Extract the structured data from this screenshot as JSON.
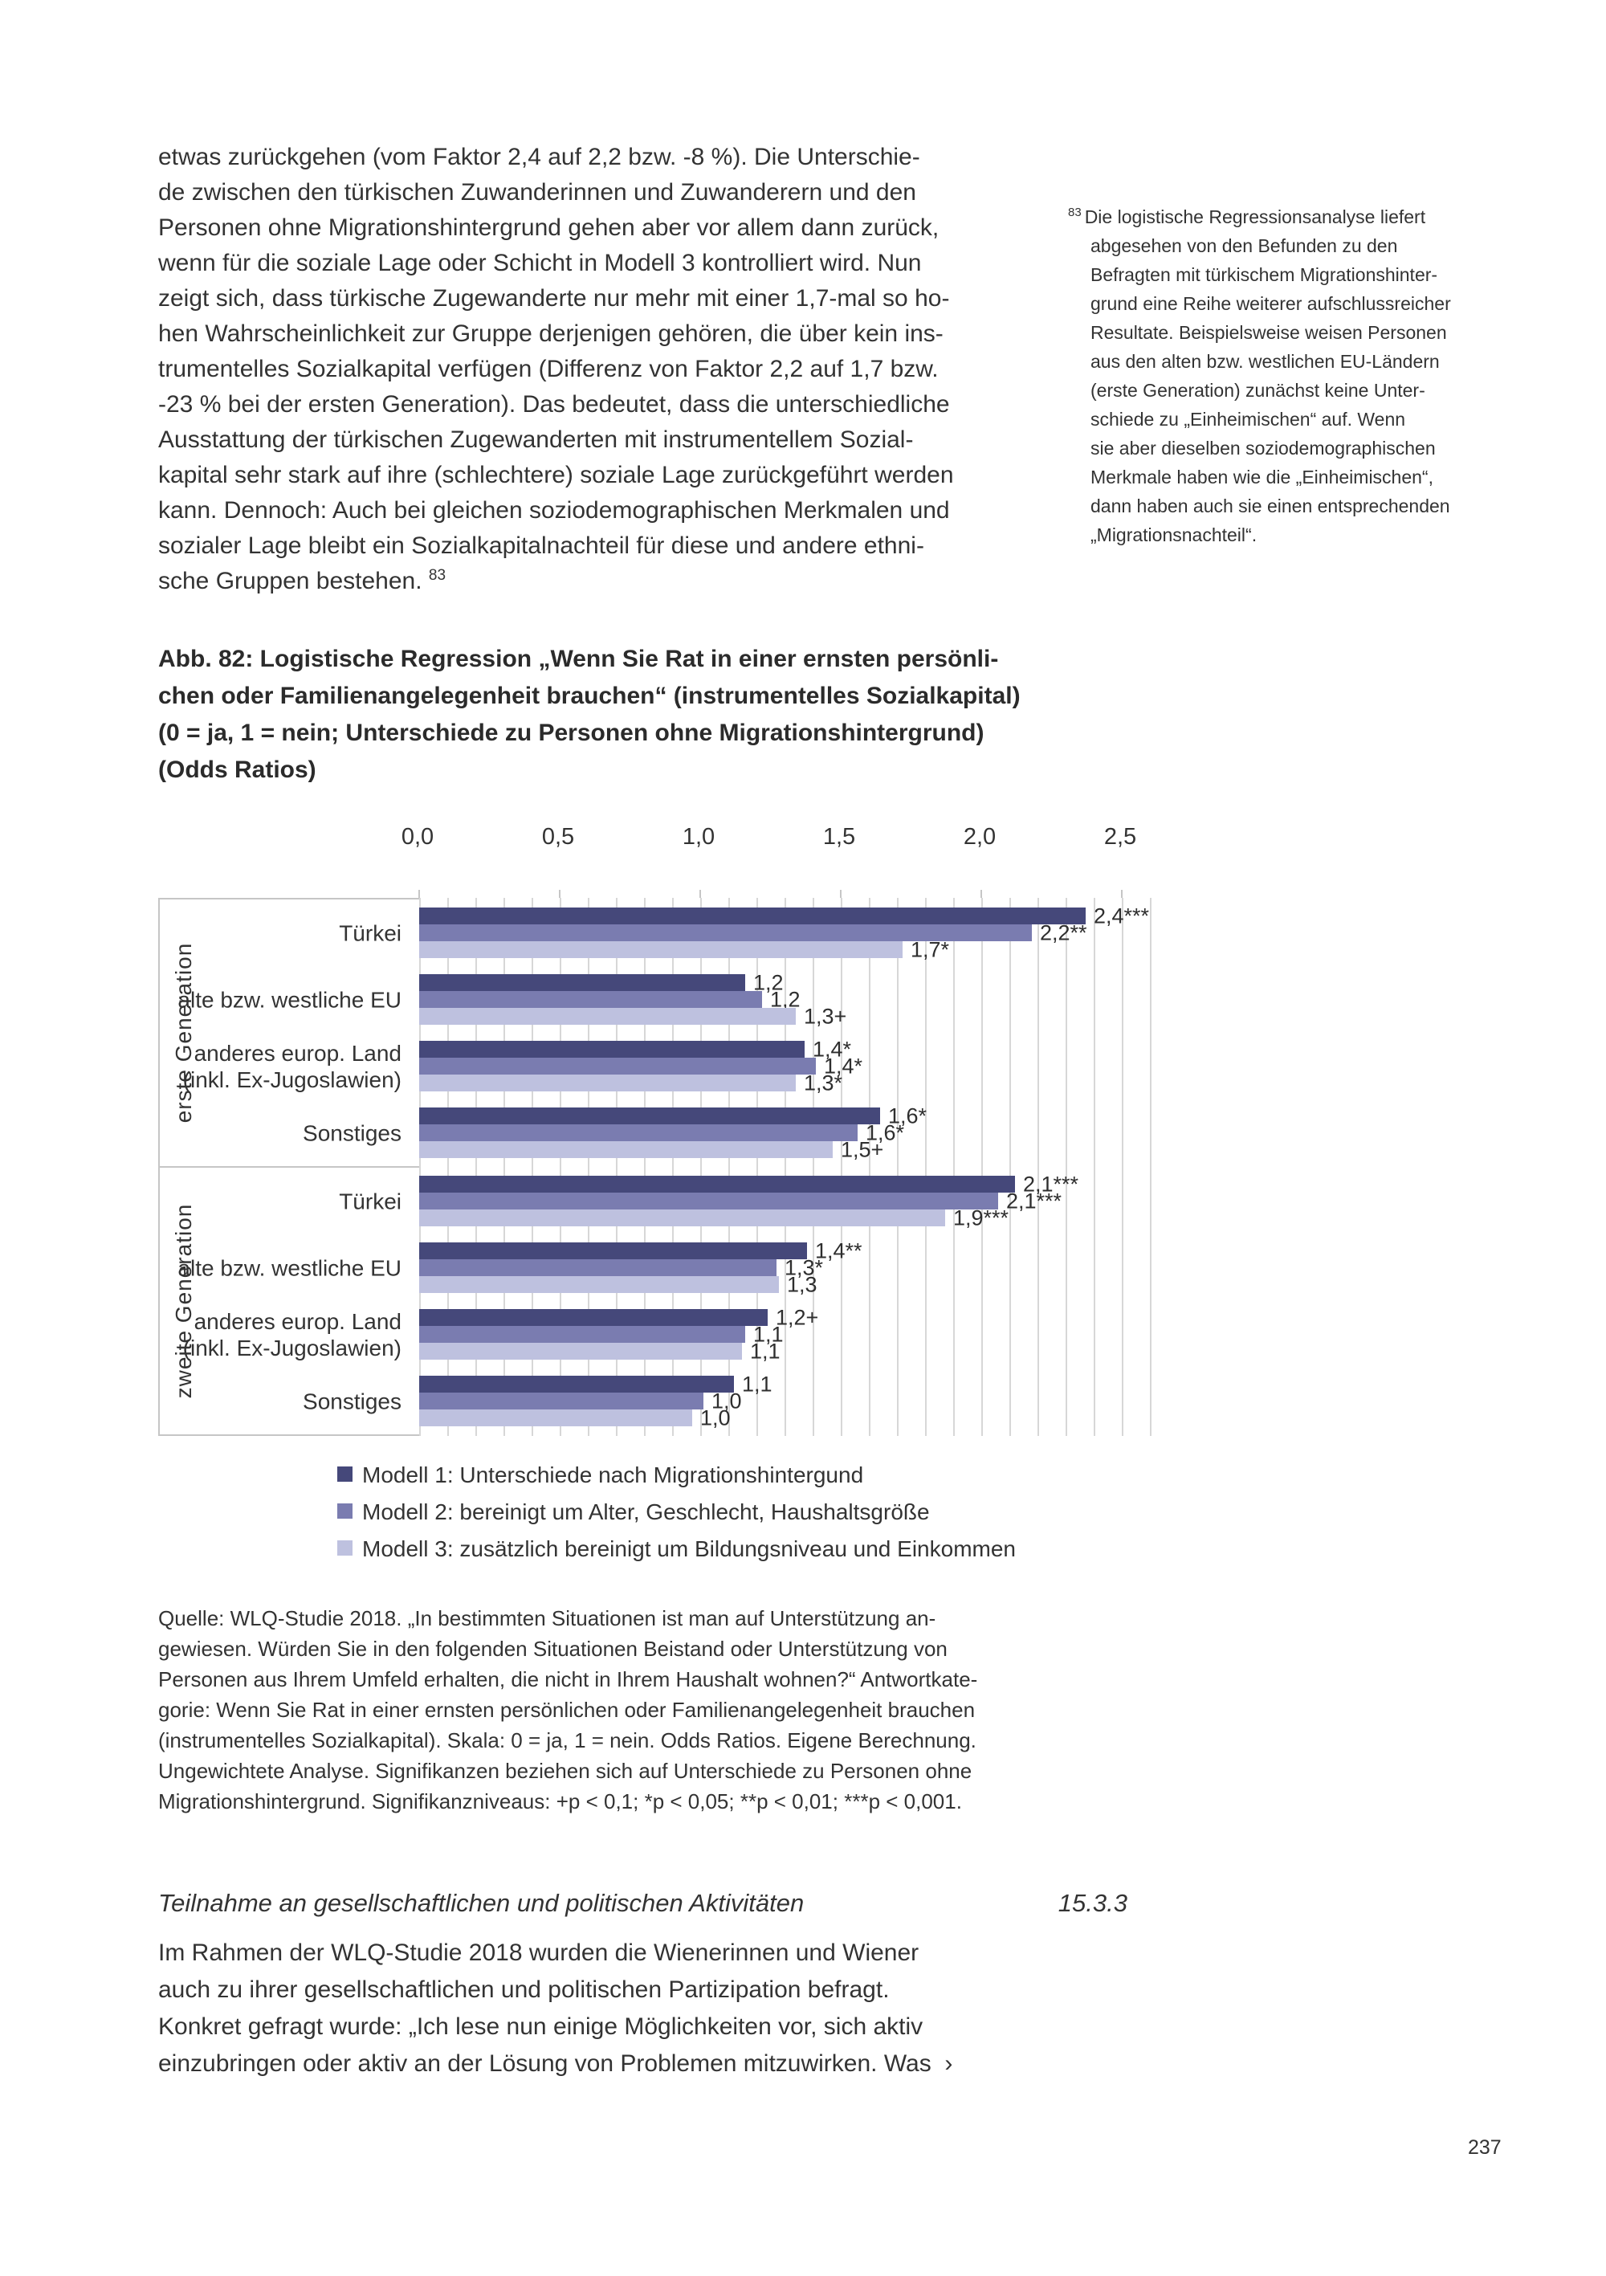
{
  "page": {
    "number": "237"
  },
  "body_paragraph": {
    "text": "etwas zurückgehen (vom Faktor 2,4 auf 2,2 bzw. -8 %). Die Unterschie-\nde zwischen den türkischen Zuwanderinnen und Zuwanderern und den\nPersonen ohne Migrationshintergrund gehen aber vor allem dann zurück,\nwenn für die soziale Lage oder Schicht in Modell 3 kontrolliert wird. Nun\nzeigt sich, dass türkische Zugewanderte nur mehr mit einer 1,7-mal so ho-\nhen Wahrscheinlichkeit zur Gruppe derjenigen gehören, die über kein ins-\ntrumentelles Sozialkapital verfügen (Differenz von Faktor 2,2 auf 1,7 bzw.\n-23 % bei der ersten Generation). Das bedeutet, dass die unterschiedliche\nAusstattung der türkischen Zugewanderten mit instrumentellem Sozial-\nkapital sehr stark auf ihre (schlechtere) soziale Lage zurückgeführt werden\nkann. Dennoch: Auch bei gleichen soziodemographischen Merkmalen und\nsozialer Lage bleibt ein Sozialkapitalnachteil für diese und andere ethni-\nsche Gruppen bestehen. ",
    "footnote_ref": "83"
  },
  "footnote": {
    "marker": "83",
    "text": "Die logistische Regressionsanalyse liefert\nabgesehen von den Befunden zu den\nBefragten mit türkischem Migrationshinter-\ngrund eine Reihe weiterer aufschlussreicher\nResultate. Beispielsweise weisen Personen\naus den alten bzw. westlichen EU-Ländern\n(erste Generation) zunächst keine Unter-\nschiede zu „Einheimischen“ auf. Wenn\nsie aber dieselben soziodemographischen\nMerkmale haben wie die „Einheimischen“,\ndann haben auch sie einen entsprechenden\n„Migrationsnachteil“."
  },
  "figure": {
    "title": "Abb. 82: Logistische Regression „Wenn Sie Rat in einer ernsten persönli-\nchen oder Familienangelegenheit brauchen“ (instrumentelles Sozialkapital)\n(0 = ja, 1 = nein; Unterschiede zu Personen ohne Migrationshintergrund)\n(Odds Ratios)"
  },
  "chart_data": {
    "type": "bar",
    "orientation": "horizontal",
    "title": "Logistische Regression „Wenn Sie Rat in einer ernsten persönlichen oder Familienangelegenheit brauchen“ (Odds Ratios)",
    "xlabel": "Odds Ratios",
    "ylabel": "",
    "grid": "minor vertical lines every 0.1",
    "legend_position": "below",
    "axis": {
      "ticks": [
        "0,0",
        "0,5",
        "1,0",
        "1,5",
        "2,0",
        "2,5"
      ],
      "tick_values": [
        0,
        0.5,
        1.0,
        1.5,
        2.0,
        2.5
      ],
      "max_units": 2.6,
      "minor_step": 0.1
    },
    "series_names": [
      "Modell 1: Unterschiede nach Migrationshintergund",
      "Modell 2: bereinigt um Alter, Geschlecht, Haushaltsgröße",
      "Modell 3: zusätzlich bereinigt um Bildungsniveau und Einkommen"
    ],
    "colors": [
      "#45487a",
      "#7a7cb0",
      "#bec1df"
    ],
    "groups": [
      {
        "label": "erste Generation",
        "categories": [
          {
            "label": "Türkei",
            "values": [
              2.4,
              2.2,
              1.7
            ],
            "bar_lengths": [
              2.37,
              2.18,
              1.72
            ],
            "labels": [
              "2,4***",
              "2,2**",
              "1,7*"
            ]
          },
          {
            "label": "alte bzw. westliche EU",
            "values": [
              1.2,
              1.2,
              1.3
            ],
            "bar_lengths": [
              1.16,
              1.22,
              1.34
            ],
            "labels": [
              "1,2",
              "1,2",
              "1,3+"
            ]
          },
          {
            "label": "anderes europ. Land\n(inkl. Ex-Jugoslawien)",
            "values": [
              1.4,
              1.4,
              1.3
            ],
            "bar_lengths": [
              1.37,
              1.41,
              1.34
            ],
            "labels": [
              "1,4*",
              "1,4*",
              "1,3*"
            ]
          },
          {
            "label": "Sonstiges",
            "values": [
              1.6,
              1.6,
              1.5
            ],
            "bar_lengths": [
              1.64,
              1.56,
              1.47
            ],
            "labels": [
              "1,6*",
              "1,6*",
              "1,5+"
            ]
          }
        ]
      },
      {
        "label": "zweite Generation",
        "categories": [
          {
            "label": "Türkei",
            "values": [
              2.1,
              2.1,
              1.9
            ],
            "bar_lengths": [
              2.12,
              2.06,
              1.87
            ],
            "labels": [
              "2,1***",
              "2,1***",
              "1,9***"
            ]
          },
          {
            "label": "alte bzw. westliche EU",
            "values": [
              1.4,
              1.3,
              1.3
            ],
            "bar_lengths": [
              1.38,
              1.27,
              1.28
            ],
            "labels": [
              "1,4**",
              "1,3*",
              "1,3"
            ]
          },
          {
            "label": "anderes europ. Land\n(inkl. Ex-Jugoslawien)",
            "values": [
              1.2,
              1.1,
              1.1
            ],
            "bar_lengths": [
              1.24,
              1.16,
              1.15
            ],
            "labels": [
              "1,2+",
              "1,1",
              "1,1"
            ]
          },
          {
            "label": "Sonstiges",
            "values": [
              1.1,
              1.0,
              1.0
            ],
            "bar_lengths": [
              1.12,
              1.01,
              0.97
            ],
            "labels": [
              "1,1",
              "1,0",
              "1,0"
            ]
          }
        ]
      }
    ]
  },
  "legend": {
    "items": [
      {
        "label": "Modell 1: Unterschiede nach Migrationshintergund",
        "color": "#45487a"
      },
      {
        "label": "Modell 2: bereinigt um Alter, Geschlecht, Haushaltsgröße",
        "color": "#7a7cb0"
      },
      {
        "label": "Modell 3: zusätzlich bereinigt um Bildungsniveau und Einkommen",
        "color": "#bec1df"
      }
    ]
  },
  "source_note": {
    "text": "Quelle: WLQ-Studie 2018. „In bestimmten Situationen ist man auf Unterstützung an-\ngewiesen. Würden Sie in den folgenden Situationen Beistand oder Unterstützung von\nPersonen aus Ihrem Umfeld erhalten, die nicht in Ihrem Haushalt wohnen?“ Antwortkate-\ngorie: Wenn Sie Rat in einer ernsten persönlichen oder Familienangelegenheit brauchen\n(instrumentelles Sozialkapital). Skala: 0 = ja, 1 = nein. Odds Ratios. Eigene Berechnung.\nUngewichtete Analyse. Signifikanzen beziehen sich auf Unterschiede zu Personen ohne\nMigrationshintergrund. Signifikanzniveaus: +p < 0,1; *p < 0,05; **p < 0,01; ***p < 0,001."
  },
  "next_section": {
    "heading": "Teilnahme an gesellschaftlichen und politischen Aktivitäten",
    "number": "15.3.3",
    "text": "Im Rahmen der WLQ-Studie 2018 wurden die Wienerinnen und Wiener\nauch zu ihrer gesellschaftlichen und politischen Partizipation befragt.\nKonkret gefragt wurde: „Ich lese nun einige Möglichkeiten vor, sich aktiv\neinzubringen oder aktiv an der Lösung von Problemen mitzuwirken. Was  ›"
  }
}
